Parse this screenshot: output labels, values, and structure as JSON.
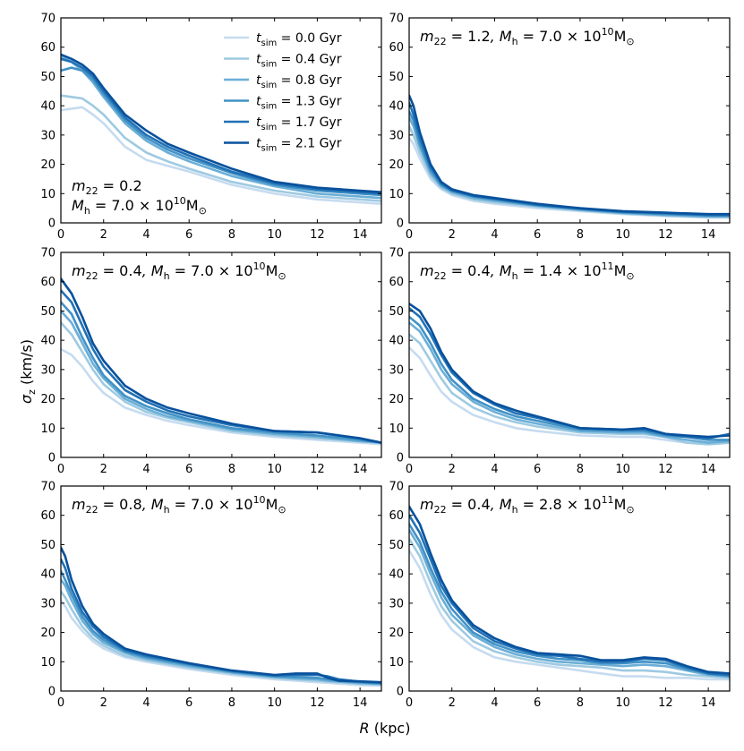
{
  "chart_data": {
    "type": "line",
    "figure": {
      "xlabel_italic": "R",
      "xlabel_rest": " (kpc)",
      "ylabel_symbol": "σ",
      "ylabel_sub": "z",
      "ylabel_rest": " (km/s)"
    },
    "x_axis": {
      "range": [
        0,
        15
      ],
      "ticks": [
        0,
        2,
        4,
        6,
        8,
        10,
        12,
        14
      ],
      "tick_labels": [
        "0",
        "2",
        "4",
        "6",
        "8",
        "10",
        "12",
        "14"
      ]
    },
    "y_axis": {
      "range": [
        0,
        70
      ],
      "ticks": [
        0,
        10,
        20,
        30,
        40,
        50,
        60,
        70
      ],
      "tick_labels": [
        "0",
        "10",
        "20",
        "30",
        "40",
        "50",
        "60",
        "70"
      ]
    },
    "legend": {
      "location": "top-right of top-left panel",
      "var_italic": "t",
      "var_sub": "sim",
      "entries": [
        {
          "value": " = 0.0 Gyr",
          "color": "#c6dbef"
        },
        {
          "value": " = 0.4 Gyr",
          "color": "#9ecae1"
        },
        {
          "value": " = 0.8 Gyr",
          "color": "#6baed6"
        },
        {
          "value": " = 1.3 Gyr",
          "color": "#4292c6"
        },
        {
          "value": " = 1.7 Gyr",
          "color": "#2171b5"
        },
        {
          "value": " = 2.1 Gyr",
          "color": "#08519c"
        }
      ]
    },
    "panels": [
      {
        "annotation_lines": [
          {
            "m22": "0.2",
            "mh": null
          },
          {
            "m22": null,
            "mh": {
              "mant": "7.0",
              "exp": "10"
            }
          }
        ],
        "x": [
          0,
          0.5,
          1,
          1.5,
          2,
          3,
          4,
          5,
          6,
          8,
          10,
          12,
          14,
          15
        ],
        "series": [
          {
            "name": "0.0 Gyr",
            "values": [
              38.5,
              39,
              39.5,
              37,
              34,
              26,
              21.5,
              19.5,
              17.5,
              13,
              10,
              8,
              7,
              6.5
            ]
          },
          {
            "name": "0.4 Gyr",
            "values": [
              43.5,
              43,
              42.5,
              40,
              37,
              29,
              24,
              21,
              18.5,
              14,
              11,
              9,
              8,
              7.5
            ]
          },
          {
            "name": "0.8 Gyr",
            "values": [
              57,
              55,
              52,
              48,
              43,
              34,
              28,
              24,
              21,
              16,
              12.5,
              10,
              9,
              8.5
            ]
          },
          {
            "name": "1.3 Gyr",
            "values": [
              52,
              53,
              52,
              49,
              44,
              35,
              29,
              25,
              22,
              17,
              13,
              11,
              10,
              9.5
            ]
          },
          {
            "name": "1.7 Gyr",
            "values": [
              56,
              55,
              53,
              50,
              45,
              36,
              30,
              26,
              23,
              17.5,
              13.5,
              11.5,
              10.5,
              10
            ]
          },
          {
            "name": "2.1 Gyr",
            "values": [
              57.5,
              56,
              54,
              51,
              46,
              37,
              31.5,
              27,
              24,
              18.5,
              14,
              12,
              11,
              10.5
            ]
          }
        ]
      },
      {
        "annotation_lines": [
          {
            "m22": "1.2",
            "mh": {
              "mant": "7.0",
              "exp": "10"
            }
          }
        ],
        "x": [
          0,
          0.2,
          0.5,
          1,
          1.5,
          2,
          3,
          4,
          6,
          8,
          10,
          12,
          14,
          15
        ],
        "series": [
          {
            "name": "0.0 Gyr",
            "values": [
              29,
              27,
              22,
              15,
              11.5,
              9.5,
              7.5,
              6.5,
              5,
              4,
              3,
              2.3,
              1.8,
              1.8
            ]
          },
          {
            "name": "0.4 Gyr",
            "values": [
              33,
              30,
              24,
              16,
              12,
              10,
              8,
              7,
              5.5,
              4.3,
              3.2,
              2.5,
              2,
              2
            ]
          },
          {
            "name": "0.8 Gyr",
            "values": [
              36,
              33,
              26,
              17,
              12.5,
              10.5,
              8.5,
              7.5,
              5.8,
              4.5,
              3.4,
              2.7,
              2.2,
              2.2
            ]
          },
          {
            "name": "1.3 Gyr",
            "values": [
              38,
              35,
              27,
              18,
              13,
              11,
              9,
              8,
              6,
              4.7,
              3.6,
              3,
              2.5,
              2.5
            ]
          },
          {
            "name": "1.7 Gyr",
            "values": [
              41,
              37,
              29,
              19,
              13.5,
              11,
              9.2,
              8.2,
              6.2,
              4.9,
              3.8,
              3.3,
              2.7,
              2.7
            ]
          },
          {
            "name": "2.1 Gyr",
            "values": [
              43.5,
              40,
              31,
              20,
              14,
              11.5,
              9.5,
              8.5,
              6.5,
              5,
              4,
              3.5,
              3,
              3
            ]
          }
        ]
      },
      {
        "annotation_lines": [
          {
            "m22": "0.4",
            "mh": {
              "mant": "7.0",
              "exp": "10"
            }
          }
        ],
        "x": [
          0,
          0.5,
          1,
          1.5,
          2,
          3,
          4,
          5,
          6,
          8,
          10,
          12,
          14,
          15
        ],
        "series": [
          {
            "name": "0.0 Gyr",
            "values": [
              37,
              35,
              31,
              26,
              22,
              17,
              14.5,
              12.5,
              11,
              8.5,
              7,
              6,
              5,
              4.5
            ]
          },
          {
            "name": "0.4 Gyr",
            "values": [
              46,
              42,
              36,
              30,
              25,
              19,
              15.5,
              13.5,
              12,
              9,
              7.5,
              6.5,
              5.5,
              5
            ]
          },
          {
            "name": "0.8 Gyr",
            "values": [
              50,
              46,
              39,
              32,
              27,
              20,
              16.5,
              14,
              12.5,
              9.5,
              8,
              7,
              5.5,
              5
            ]
          },
          {
            "name": "1.3 Gyr",
            "values": [
              53,
              49,
              41,
              34,
              28,
              21,
              17.5,
              15,
              13,
              10,
              8.5,
              7.5,
              6,
              5
            ]
          },
          {
            "name": "1.7 Gyr",
            "values": [
              57,
              53,
              45,
              37,
              31,
              23,
              19,
              16,
              14,
              11,
              9,
              8.5,
              6.5,
              5
            ]
          },
          {
            "name": "2.1 Gyr",
            "values": [
              61,
              56,
              48,
              39,
              33,
              24.5,
              20,
              17,
              15,
              11.5,
              9,
              8.5,
              6.5,
              5
            ]
          }
        ]
      },
      {
        "annotation_lines": [
          {
            "m22": "0.4",
            "mh": {
              "mant": "1.4",
              "exp": "11"
            }
          }
        ],
        "x": [
          0,
          0.5,
          1,
          1.5,
          2,
          3,
          4,
          5,
          6,
          8,
          10,
          11,
          12,
          13,
          14,
          15
        ],
        "series": [
          {
            "name": "0.0 Gyr",
            "values": [
              37.5,
              34,
              28,
              22.5,
              19,
              14.5,
              12,
              10,
              9,
              7.5,
              7,
              7,
              6,
              5,
              4.5,
              5
            ]
          },
          {
            "name": "0.4 Gyr",
            "values": [
              42,
              39,
              33,
              27,
              22,
              17,
              14,
              12,
              10.5,
              8.5,
              8,
              8,
              7,
              5,
              4.5,
              5
            ]
          },
          {
            "name": "0.8 Gyr",
            "values": [
              46,
              43,
              37,
              30,
              25,
              19,
              15.5,
              13,
              11.5,
              9,
              8.5,
              8.5,
              7,
              6,
              5,
              5.5
            ]
          },
          {
            "name": "1.3 Gyr",
            "values": [
              48,
              45,
              39,
              32,
              26.5,
              20,
              16.5,
              14,
              12.5,
              9.5,
              9,
              9,
              7.5,
              7,
              6,
              6
            ]
          },
          {
            "name": "1.7 Gyr",
            "values": [
              51,
              48,
              42,
              35,
              29,
              22,
              18,
              15,
              13.5,
              10,
              9.5,
              9.5,
              8,
              7,
              6.5,
              8
            ]
          },
          {
            "name": "2.1 Gyr",
            "values": [
              52.5,
              50,
              44,
              36,
              30,
              22.5,
              18.5,
              16,
              14,
              10,
              9.5,
              10,
              8,
              7.5,
              7,
              7.5
            ]
          }
        ]
      },
      {
        "annotation_lines": [
          {
            "m22": "0.8",
            "mh": {
              "mant": "7.0",
              "exp": "10"
            }
          }
        ],
        "x": [
          0,
          0.2,
          0.5,
          1,
          1.5,
          2,
          3,
          4,
          6,
          8,
          10,
          11,
          12,
          12.5,
          13,
          14,
          15
        ],
        "series": [
          {
            "name": "0.0 Gyr",
            "values": [
              31,
              29,
              25,
              20.5,
              17,
              14.5,
              11.5,
              10,
              7.5,
              5.5,
              4,
              3.5,
              3,
              2.8,
              2.5,
              2,
              1.8
            ]
          },
          {
            "name": "0.4 Gyr",
            "values": [
              34,
              32,
              28,
              22,
              18,
              15.5,
              12,
              10.5,
              8,
              6,
              4.5,
              4,
              3.5,
              3.2,
              3,
              2.5,
              2.2
            ]
          },
          {
            "name": "0.8 Gyr",
            "values": [
              38,
              36,
              31,
              24,
              19.5,
              16.5,
              13,
              11,
              8.5,
              6.3,
              4.8,
              4.3,
              4,
              3.5,
              3.2,
              2.7,
              2.4
            ]
          },
          {
            "name": "1.3 Gyr",
            "values": [
              41,
              38,
              33,
              25.5,
              20.5,
              17.5,
              13.5,
              11.5,
              9,
              6.6,
              5,
              4.8,
              4.5,
              4,
              3.5,
              3,
              2.6
            ]
          },
          {
            "name": "1.7 Gyr",
            "values": [
              45,
              42,
              35,
              27,
              22,
              18.5,
              14,
              12,
              9.3,
              6.9,
              5.3,
              5.5,
              5.5,
              5,
              4,
              3.2,
              2.8
            ]
          },
          {
            "name": "2.1 Gyr",
            "values": [
              49,
              46,
              38,
              29,
              23,
              19.5,
              14.5,
              12.5,
              9.5,
              7,
              5.5,
              6,
              6,
              4.5,
              3.5,
              3.3,
              3
            ]
          }
        ]
      },
      {
        "annotation_lines": [
          {
            "m22": "0.4",
            "mh": {
              "mant": "2.8",
              "exp": "11"
            }
          }
        ],
        "x": [
          0,
          0.5,
          1,
          1.5,
          2,
          3,
          4,
          5,
          6,
          7,
          8,
          9,
          10,
          11,
          12,
          13,
          14,
          15
        ],
        "series": [
          {
            "name": "0.0 Gyr",
            "values": [
              48,
              42,
              33,
              26,
              21,
              15,
              11.5,
              10,
              9,
              8,
              7,
              6,
              5,
              5,
              4.5,
              4.5,
              4,
              4
            ]
          },
          {
            "name": "0.4 Gyr",
            "values": [
              52,
              46,
              37,
              29,
              24,
              17,
              13.5,
              11.5,
              10,
              9,
              8.5,
              8,
              7,
              7,
              6.5,
              5.5,
              5,
              4.5
            ]
          },
          {
            "name": "0.8 Gyr",
            "values": [
              55,
              49,
              40,
              32,
              26,
              19,
              15,
              12.5,
              11,
              10,
              9.5,
              9,
              8.5,
              9,
              8.5,
              7,
              5.5,
              5
            ]
          },
          {
            "name": "1.3 Gyr",
            "values": [
              57,
              51,
              42,
              34,
              28,
              20,
              16,
              13.5,
              12,
              11,
              10.5,
              9.5,
              9.5,
              10,
              9.5,
              7.5,
              6,
              5
            ]
          },
          {
            "name": "1.7 Gyr",
            "values": [
              60,
              54,
              45,
              36,
              30,
              21.5,
              17,
              14.5,
              12.5,
              12,
              11,
              10,
              10,
              11,
              10.5,
              8,
              6,
              5.5
            ]
          },
          {
            "name": "2.1 Gyr",
            "values": [
              63,
              57,
              47,
              38,
              31,
              22.5,
              18,
              15,
              13,
              12.5,
              12,
              10.5,
              10.5,
              11.5,
              11,
              8.5,
              6.5,
              6
            ]
          }
        ]
      }
    ]
  }
}
